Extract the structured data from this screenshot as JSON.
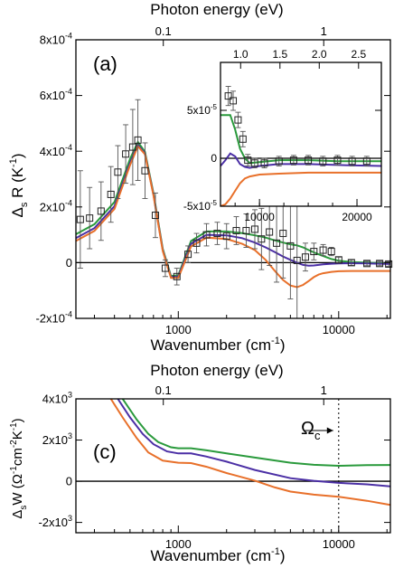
{
  "chart_data": [
    {
      "panel_label": "(a)",
      "type": "line",
      "xlabel": "Wavenumber (cm",
      "xlabel_sup": "-1",
      "xlabel_tail": ")",
      "top_label": "Photon energy (eV)",
      "ylabel_main": "Δ",
      "ylabel_sub": "s",
      "ylabel_tail": " R (K",
      "ylabel_sup": "-1",
      "ylabel_end": ")",
      "x_scale": "log",
      "xlim": [
        230,
        21000
      ],
      "ylim": [
        -0.0002,
        0.0008
      ],
      "x_ticks": [
        {
          "value": 1000,
          "label": "1000"
        },
        {
          "value": 10000,
          "label": "10000"
        }
      ],
      "top_ticks": [
        {
          "value": 806.5,
          "label": "0.1"
        },
        {
          "value": 8065,
          "label": "1"
        }
      ],
      "y_ticks": [
        {
          "value": 0.0008,
          "mant": "8x10",
          "exp": "-4"
        },
        {
          "value": 0.0006,
          "mant": "6x10",
          "exp": "-4"
        },
        {
          "value": 0.0004,
          "mant": "4x10",
          "exp": "-4"
        },
        {
          "value": 0.0002,
          "mant": "2x10",
          "exp": "-4"
        },
        {
          "value": 0,
          "mant": "0",
          "exp": ""
        },
        {
          "value": -0.0002,
          "mant": "-2x10",
          "exp": "-4"
        }
      ],
      "series": [
        {
          "color": "#2a9a3c",
          "x": [
            230,
            300,
            400,
            500,
            560,
            620,
            700,
            800,
            900,
            1000,
            1200,
            1500,
            2000,
            2500,
            3000,
            3500,
            4000,
            4500,
            5000,
            5500,
            6000,
            6500,
            7000,
            7500,
            8000,
            9000,
            10000,
            12000,
            15000,
            18000,
            21000
          ],
          "y": [
            0.000102,
            0.000138,
            0.000218,
            0.000372,
            0.000433,
            0.000398,
            0.00025,
            5e-05,
            -4.8e-05,
            -4.5e-05,
            7.8e-05,
            0.000112,
            0.000112,
            0.000106,
            9.8e-05,
            9e-05,
            8e-05,
            7.2e-05,
            6.6e-05,
            6.2e-05,
            5.5e-05,
            4.5e-05,
            3.7e-05,
            3e-05,
            2.4e-05,
            1.3e-05,
            7e-06,
            2e-06,
            0.0,
            -2e-06,
            -4e-06
          ]
        },
        {
          "color": "#4b2fa5",
          "x": [
            230,
            300,
            400,
            500,
            560,
            620,
            700,
            800,
            900,
            1000,
            1200,
            1500,
            2000,
            2500,
            3000,
            3500,
            4000,
            4500,
            5000,
            5500,
            6000,
            6500,
            7000,
            7500,
            8000,
            9000,
            10000,
            12000,
            15000,
            18000,
            21000
          ],
          "y": [
            8.8e-05,
            0.000124,
            0.000203,
            0.000358,
            0.000423,
            0.000392,
            0.000245,
            4.5e-05,
            -5.2e-05,
            -5e-05,
            6.8e-05,
            0.0001,
            9.8e-05,
            8.8e-05,
            7.2e-05,
            5.5e-05,
            3.8e-05,
            2.2e-05,
            1e-05,
            0.0,
            -8e-06,
            -1.1e-05,
            -1e-05,
            -8e-06,
            -6e-06,
            -4e-06,
            -3e-06,
            -2e-06,
            -3e-06,
            -4e-06,
            -5e-06
          ]
        },
        {
          "color": "#e8702a",
          "x": [
            230,
            300,
            400,
            500,
            560,
            620,
            700,
            800,
            900,
            1000,
            1200,
            1500,
            2000,
            2500,
            3000,
            3500,
            4000,
            4500,
            5000,
            5500,
            6000,
            6500,
            7000,
            7500,
            8000,
            9000,
            10000,
            12000,
            15000,
            18000,
            21000
          ],
          "y": [
            7.8e-05,
            0.000114,
            0.000193,
            0.00035,
            0.000418,
            0.000389,
            0.000242,
            4.2e-05,
            -5.5e-05,
            -5.5e-05,
            5.8e-05,
            9e-05,
            8.5e-05,
            6.8e-05,
            4.5e-05,
            1e-05,
            -3e-05,
            -6.2e-05,
            -8.2e-05,
            -8.8e-05,
            -8e-05,
            -6.6e-05,
            -5.2e-05,
            -4.3e-05,
            -3.8e-05,
            -3.3e-05,
            -3.1e-05,
            -3e-05,
            -3e-05,
            -3e-05,
            -3e-05
          ]
        }
      ],
      "points": [
        {
          "x": 245,
          "y": 0.000155,
          "err": 0.000175
        },
        {
          "x": 280,
          "y": 0.00016,
          "err": 0.00011
        },
        {
          "x": 330,
          "y": 0.000185,
          "err": 0.000105
        },
        {
          "x": 380,
          "y": 0.000245,
          "err": 0.0001
        },
        {
          "x": 420,
          "y": 0.000325,
          "err": 9.5e-05
        },
        {
          "x": 470,
          "y": 0.00039,
          "err": 0.000105
        },
        {
          "x": 520,
          "y": 0.000415,
          "err": 0.000135
        },
        {
          "x": 560,
          "y": 0.00044,
          "err": 0.000145
        },
        {
          "x": 620,
          "y": 0.00033,
          "err": 0.0001
        },
        {
          "x": 720,
          "y": 0.00017,
          "err": 8e-05
        },
        {
          "x": 830,
          "y": -2e-05,
          "err": 3e-05
        },
        {
          "x": 980,
          "y": -5e-05,
          "err": 3e-05
        },
        {
          "x": 1150,
          "y": 3e-05,
          "err": 3e-05
        },
        {
          "x": 1300,
          "y": 7e-05,
          "err": 3.5e-05
        },
        {
          "x": 1500,
          "y": 0.0001,
          "err": 4e-05
        },
        {
          "x": 1750,
          "y": 0.000105,
          "err": 4e-05
        },
        {
          "x": 2000,
          "y": 9.5e-05,
          "err": 4.5e-05
        },
        {
          "x": 2300,
          "y": 0.000115,
          "err": 5e-05
        },
        {
          "x": 2650,
          "y": 0.000115,
          "err": 6e-05
        },
        {
          "x": 3000,
          "y": 0.00012,
          "err": 7e-05
        },
        {
          "x": 3300,
          "y": 8.5e-05,
          "err": 0.00011
        },
        {
          "x": 3700,
          "y": 0.00011,
          "err": 0.00012
        },
        {
          "x": 4100,
          "y": 7e-05,
          "err": 0.00014
        },
        {
          "x": 4500,
          "y": 0.000105,
          "err": 0.00016
        },
        {
          "x": 5000,
          "y": 6e-05,
          "err": 0.00019
        },
        {
          "x": 5500,
          "y": 8e-06,
          "err": 0.00021
        },
        {
          "x": 6200,
          "y": 2e-05,
          "err": 5e-05
        },
        {
          "x": 7000,
          "y": 4e-05,
          "err": 3e-05
        },
        {
          "x": 8000,
          "y": 4.5e-05,
          "err": 2e-05
        },
        {
          "x": 9000,
          "y": 4e-05,
          "err": 1.5e-05
        },
        {
          "x": 10000,
          "y": 1e-05,
          "err": 1e-05
        },
        {
          "x": 12000,
          "y": 0.0,
          "err": 1e-05
        },
        {
          "x": 15000,
          "y": -3e-06,
          "err": 8e-06
        },
        {
          "x": 18000,
          "y": -3e-06,
          "err": 8e-06
        },
        {
          "x": 20500,
          "y": -5e-06,
          "err": 8e-06
        }
      ],
      "inset": {
        "x_scale": "linear",
        "xlim": [
          6000,
          22500
        ],
        "ylim": [
          -5e-05,
          0.0001
        ],
        "x_ticks": [
          {
            "value": 10000,
            "label": "10000"
          },
          {
            "value": 20000,
            "label": "20000"
          }
        ],
        "top_ticks": [
          {
            "value": 8065,
            "label": "1.0"
          },
          {
            "value": 12098,
            "label": "1.5"
          },
          {
            "value": 16130,
            "label": "2.0"
          },
          {
            "value": 20163,
            "label": "2.5"
          }
        ],
        "y_ticks": [
          {
            "value": 5e-05,
            "mant": "5x10",
            "exp": "-5"
          },
          {
            "value": 0,
            "mant": "0",
            "exp": ""
          },
          {
            "value": -5e-05,
            "mant": "-5x10",
            "exp": "-5"
          }
        ],
        "series": [
          {
            "color": "#2a9a3c",
            "x": [
              6000,
              7000,
              7500,
              8000,
              8500,
              9000,
              10000,
              12000,
              15000,
              18000,
              22500
            ],
            "y": [
              4.5e-05,
              4.5e-05,
              3e-05,
              1e-05,
              0.0,
              -5e-06,
              -4e-06,
              -2e-06,
              -2e-06,
              -3e-06,
              -3e-06
            ]
          },
          {
            "color": "#4b2fa5",
            "x": [
              6000,
              6500,
              7000,
              7500,
              8000,
              8500,
              9000,
              10000,
              12000,
              15000,
              18000,
              22500
            ],
            "y": [
              -8e-06,
              -2e-06,
              5e-06,
              2e-06,
              -6e-06,
              -9e-06,
              -1e-05,
              -8e-06,
              -6e-06,
              -6e-06,
              -7e-06,
              -8e-06
            ]
          },
          {
            "color": "#e8702a",
            "x": [
              6000,
              6500,
              7000,
              7500,
              8000,
              8500,
              9000,
              10000,
              12000,
              15000,
              18000,
              22500
            ],
            "y": [
              -5e-05,
              -4.8e-05,
              -4.2e-05,
              -3.4e-05,
              -2.6e-05,
              -2.1e-05,
              -1.9e-05,
              -1.7e-05,
              -1.6e-05,
              -1.5e-05,
              -1.5e-05,
              -1.5e-05
            ]
          }
        ],
        "points": [
          {
            "x": 6800,
            "y": 6.5e-05,
            "err": 1e-05
          },
          {
            "x": 7300,
            "y": 6e-05,
            "err": 1e-05
          },
          {
            "x": 7800,
            "y": 4e-05,
            "err": 8e-06
          },
          {
            "x": 8300,
            "y": 2e-05,
            "err": 8e-06
          },
          {
            "x": 8800,
            "y": -2e-06,
            "err": 6e-06
          },
          {
            "x": 9500,
            "y": -5e-06,
            "err": 5e-06
          },
          {
            "x": 10500,
            "y": -5e-06,
            "err": 5e-06
          },
          {
            "x": 12000,
            "y": -3e-06,
            "err": 5e-06
          },
          {
            "x": 13500,
            "y": -2e-06,
            "err": 5e-06
          },
          {
            "x": 15000,
            "y": -2e-06,
            "err": 5e-06
          },
          {
            "x": 16500,
            "y": -3e-06,
            "err": 5e-06
          },
          {
            "x": 18000,
            "y": -2e-06,
            "err": 5e-06
          },
          {
            "x": 19500,
            "y": -3e-06,
            "err": 5e-06
          },
          {
            "x": 21000,
            "y": -3e-06,
            "err": 5e-06
          }
        ]
      }
    },
    {
      "panel_label": "(c)",
      "type": "line",
      "xlabel": "Wavenumber (cm",
      "xlabel_sup": "-1",
      "xlabel_tail": ")",
      "top_label": "Photon energy (eV)",
      "ylabel_main": "Δ",
      "ylabel_sub": "s",
      "ylabel_tail": "W (Ω",
      "ylabel_sup": "-1",
      "ylabel_mid": "cm",
      "ylabel_sup2": "-2",
      "ylabel_mid2": "K",
      "ylabel_sup3": "-1",
      "ylabel_end": ")",
      "x_scale": "log",
      "xlim": [
        230,
        21000
      ],
      "ylim": [
        -2500,
        4000
      ],
      "x_ticks": [
        {
          "value": 1000,
          "label": "1000"
        },
        {
          "value": 10000,
          "label": "10000"
        }
      ],
      "top_ticks": [
        {
          "value": 806.5,
          "label": "0.1"
        },
        {
          "value": 8065,
          "label": "1"
        }
      ],
      "y_ticks": [
        {
          "value": 4000,
          "mant": "4x10",
          "exp": "3"
        },
        {
          "value": 2000,
          "mant": "2x10",
          "exp": "3"
        },
        {
          "value": 0,
          "mant": "0",
          "exp": ""
        },
        {
          "value": -2000,
          "mant": "-2x10",
          "exp": "3"
        }
      ],
      "annotation": {
        "text": "Ω",
        "sub": "c",
        "x": 10000
      },
      "series": [
        {
          "color": "#2a9a3c",
          "x": [
            450,
            550,
            650,
            750,
            900,
            1000,
            1200,
            1500,
            2000,
            3000,
            5000,
            7000,
            10000,
            15000,
            21000
          ],
          "y": [
            4000,
            3000,
            2300,
            1900,
            1650,
            1600,
            1600,
            1500,
            1350,
            1150,
            900,
            800,
            750,
            780,
            790
          ]
        },
        {
          "color": "#4b2fa5",
          "x": [
            420,
            500,
            600,
            700,
            850,
            1000,
            1200,
            1500,
            2000,
            3000,
            5000,
            7000,
            10000,
            15000,
            21000
          ],
          "y": [
            4000,
            3100,
            2300,
            1800,
            1450,
            1350,
            1350,
            1200,
            950,
            550,
            150,
            20,
            -80,
            -150,
            -250
          ]
        },
        {
          "color": "#e8702a",
          "x": [
            380,
            450,
            550,
            650,
            800,
            1000,
            1200,
            1500,
            2000,
            3000,
            4000,
            5000,
            7000,
            10000,
            15000,
            21000
          ],
          "y": [
            4000,
            3100,
            2100,
            1400,
            1000,
            900,
            880,
            700,
            400,
            30,
            -300,
            -500,
            -650,
            -750,
            -950,
            -1150
          ]
        }
      ]
    }
  ]
}
